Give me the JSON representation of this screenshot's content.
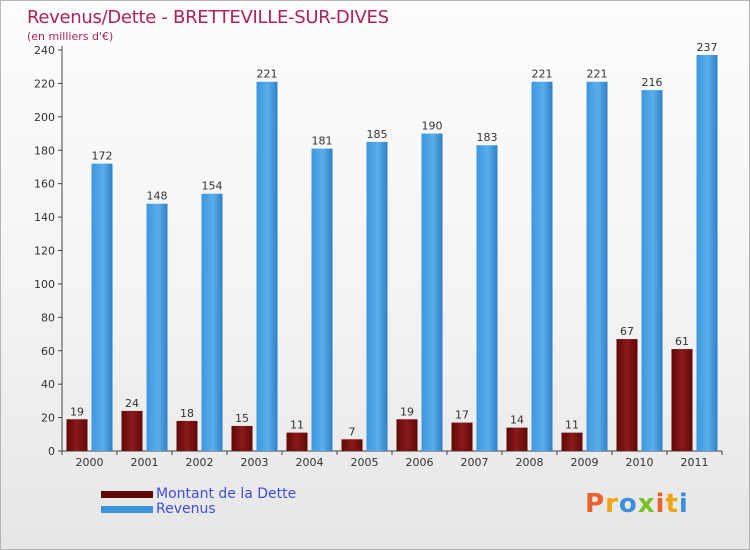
{
  "header": {
    "title": "Revenus/Dette - BRETTEVILLE-SUR-DIVES",
    "subtitle": "(en milliers d'€)"
  },
  "logo": {
    "text": "Proxiti",
    "colors": [
      "#e8622c",
      "#f2a30f",
      "#3a8fd6",
      "#7bbf2a",
      "#e8622c",
      "#f2a30f",
      "#3a8fd6"
    ]
  },
  "chart_data": {
    "type": "bar",
    "title": "Revenus/Dette - BRETTEVILLE-SUR-DIVES",
    "subtitle": "(en milliers d'€)",
    "xlabel": "",
    "ylabel": "",
    "categories": [
      "2000",
      "2001",
      "2002",
      "2003",
      "2004",
      "2005",
      "2006",
      "2007",
      "2008",
      "2009",
      "2010",
      "2011"
    ],
    "series": [
      {
        "name": "Montant de la Dette",
        "color": "#7a0d0d",
        "values": [
          19,
          24,
          18,
          15,
          11,
          7,
          19,
          17,
          14,
          11,
          67,
          61
        ]
      },
      {
        "name": "Revenus",
        "color": "#3a93dc",
        "values": [
          172,
          148,
          154,
          221,
          181,
          185,
          190,
          183,
          221,
          221,
          216,
          237
        ]
      }
    ],
    "ylim": [
      0,
      240
    ],
    "yticks": [
      0,
      20,
      40,
      60,
      80,
      100,
      120,
      140,
      160,
      180,
      200,
      220,
      240
    ],
    "grid": false,
    "legend_position": "bottom-left",
    "data_labels": true
  }
}
